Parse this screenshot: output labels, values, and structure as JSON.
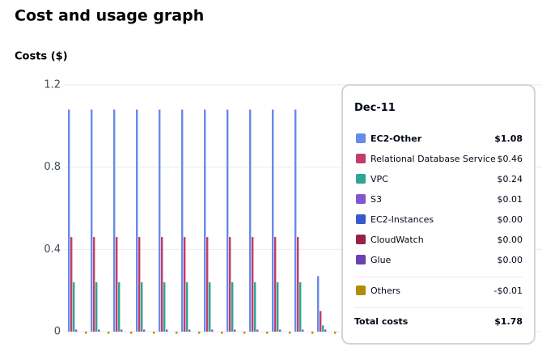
{
  "chart_data": {
    "type": "bar",
    "title": "Cost and usage graph",
    "y_label": "Costs ($)",
    "categories": [
      null,
      null,
      null,
      null,
      null,
      null,
      null,
      null,
      null,
      null,
      "Dec-11",
      null
    ],
    "series": [
      {
        "name": "EC2-Other",
        "color": "#688ae8",
        "values": [
          1.08,
          1.08,
          1.08,
          1.08,
          1.08,
          1.08,
          1.08,
          1.08,
          1.08,
          1.08,
          1.08,
          0.27
        ]
      },
      {
        "name": "Relational Database Service",
        "color": "#c33d69",
        "values": [
          0.46,
          0.46,
          0.46,
          0.46,
          0.46,
          0.46,
          0.46,
          0.46,
          0.46,
          0.46,
          0.46,
          0.1
        ]
      },
      {
        "name": "VPC",
        "color": "#2ea597",
        "values": [
          0.24,
          0.24,
          0.24,
          0.24,
          0.24,
          0.24,
          0.24,
          0.24,
          0.24,
          0.24,
          0.24,
          0.03
        ]
      },
      {
        "name": "S3",
        "color": "#8456ce",
        "values": [
          0.01,
          0.01,
          0.01,
          0.01,
          0.01,
          0.01,
          0.01,
          0.01,
          0.01,
          0.01,
          0.01,
          0.01
        ]
      },
      {
        "name": "EC2-Instances",
        "color": "#3759ce",
        "values": [
          0,
          0,
          0,
          0,
          0,
          0,
          0,
          0,
          0,
          0,
          0,
          0
        ]
      },
      {
        "name": "CloudWatch",
        "color": "#962249",
        "values": [
          0,
          0,
          0,
          0,
          0,
          0,
          0,
          0,
          0,
          0,
          0,
          0
        ]
      },
      {
        "name": "Glue",
        "color": "#6b40b2",
        "values": [
          0,
          0,
          0,
          0,
          0,
          0,
          0,
          0,
          0,
          0,
          0,
          0
        ]
      },
      {
        "name": "Others",
        "color": "#b08c00",
        "values": [
          -0.01,
          -0.01,
          -0.01,
          -0.01,
          -0.01,
          -0.01,
          -0.01,
          -0.01,
          -0.01,
          -0.01,
          -0.01,
          -0.01
        ]
      }
    ],
    "ylim": [
      0,
      1.2
    ],
    "yticks": [
      0,
      0.4,
      0.8,
      1.2
    ],
    "grid": true,
    "tooltip": {
      "value_labels": [
        "$1.08",
        "$0.46",
        "$0.24",
        "$0.01",
        "$0.00",
        "$0.00",
        "$0.00",
        "-$0.01"
      ],
      "total_label": "Total costs",
      "total": "$1.78"
    }
  }
}
